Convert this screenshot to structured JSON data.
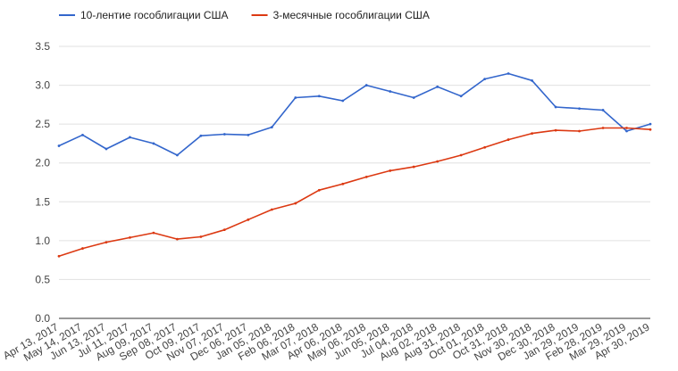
{
  "chart_data": {
    "type": "line",
    "title": "",
    "xlabel": "",
    "ylabel": "",
    "ylim": [
      0,
      3.5
    ],
    "yticks": [
      "0.0",
      "0.5",
      "1.0",
      "1.5",
      "2.0",
      "2.5",
      "3.0",
      "3.5"
    ],
    "grid": true,
    "legend_position": "top-left",
    "x_tick_labels": [
      "Apr 13, 2017",
      "May 14, 2017",
      "Jun 13, 2017",
      "Jul 11, 2017",
      "Aug 09, 2017",
      "Sep 08, 2017",
      "Oct 09, 2017",
      "Nov 07, 2017",
      "Dec 06, 2017",
      "Jan 05, 2018",
      "Feb 06, 2018",
      "Mar 07, 2018",
      "Apr 06, 2018",
      "May 06, 2018",
      "Jun 05, 2018",
      "Jul 04, 2018",
      "Aug 02, 2018",
      "Aug 31, 2018",
      "Oct 01, 2018",
      "Oct 31, 2018",
      "Nov 30, 2018",
      "Dec 30, 2018",
      "Jan 29, 2019",
      "Feb 28, 2019",
      "Mar 29, 2019",
      "Apr 30, 2019"
    ],
    "x": [
      "Apr 13, 2017",
      "May 14, 2017",
      "Jun 13, 2017",
      "Jul 11, 2017",
      "Aug 09, 2017",
      "Sep 08, 2017",
      "Oct 09, 2017",
      "Nov 07, 2017",
      "Dec 06, 2017",
      "Jan 05, 2018",
      "Feb 06, 2018",
      "Mar 07, 2018",
      "Apr 06, 2018",
      "May 06, 2018",
      "Jun 05, 2018",
      "Jul 04, 2018",
      "Aug 02, 2018",
      "Aug 31, 2018",
      "Oct 01, 2018",
      "Oct 31, 2018",
      "Nov 30, 2018",
      "Dec 30, 2018",
      "Jan 29, 2019",
      "Feb 28, 2019",
      "Mar 29, 2019",
      "Apr 30, 2019"
    ],
    "series": [
      {
        "name": "10-лентие гособлигации США",
        "color": "#3366cc",
        "values": [
          2.22,
          2.36,
          2.18,
          2.33,
          2.25,
          2.1,
          2.35,
          2.37,
          2.36,
          2.46,
          2.84,
          2.86,
          2.8,
          3.0,
          2.92,
          2.84,
          2.98,
          2.86,
          3.08,
          3.15,
          3.06,
          2.72,
          2.7,
          2.68,
          2.41,
          2.5
        ]
      },
      {
        "name": "3-месячные гособлигации США",
        "color": "#dc3912",
        "values": [
          0.8,
          0.9,
          0.98,
          1.04,
          1.1,
          1.02,
          1.05,
          1.14,
          1.27,
          1.4,
          1.48,
          1.65,
          1.73,
          1.82,
          1.9,
          1.95,
          2.02,
          2.1,
          2.2,
          2.3,
          2.38,
          2.42,
          2.41,
          2.45,
          2.45,
          2.43
        ]
      }
    ]
  }
}
